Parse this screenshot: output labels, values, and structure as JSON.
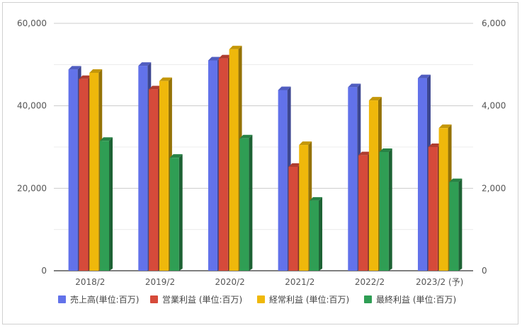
{
  "chart_data": {
    "type": "bar",
    "style": "3d-column",
    "categories": [
      "2018/2",
      "2019/2",
      "2020/2",
      "2021/2",
      "2022/2",
      "2023/2 (予)"
    ],
    "series": [
      {
        "name": "売上高(単位:百万)",
        "axis": "left",
        "color": "#6272ea",
        "values": [
          48800,
          49700,
          51000,
          43800,
          44500,
          46700
        ]
      },
      {
        "name": "営業利益 (単位:百万)",
        "axis": "right",
        "color": "#d64a3a",
        "values": [
          4650,
          4400,
          5150,
          2520,
          2800,
          3000
        ]
      },
      {
        "name": "経常利益 (単位:百万)",
        "axis": "right",
        "color": "#efb80b",
        "values": [
          4800,
          4600,
          5370,
          3050,
          4130,
          3460
        ]
      },
      {
        "name": "最終利益 (単位:百万)",
        "axis": "right",
        "color": "#2f9e54",
        "values": [
          3150,
          2740,
          3210,
          1700,
          2880,
          2150
        ]
      }
    ],
    "left_axis": {
      "ylim": [
        0,
        60000
      ],
      "ticks": [
        "0",
        "20,000",
        "40,000",
        "60,000"
      ],
      "tick_values": [
        0,
        20000,
        40000,
        60000
      ]
    },
    "right_axis": {
      "ylim": [
        0,
        6000
      ],
      "ticks": [
        "0",
        "2,000",
        "4,000",
        "6,000"
      ],
      "tick_values": [
        0,
        2000,
        4000,
        6000
      ]
    },
    "grid": true,
    "legend_position": "bottom"
  }
}
